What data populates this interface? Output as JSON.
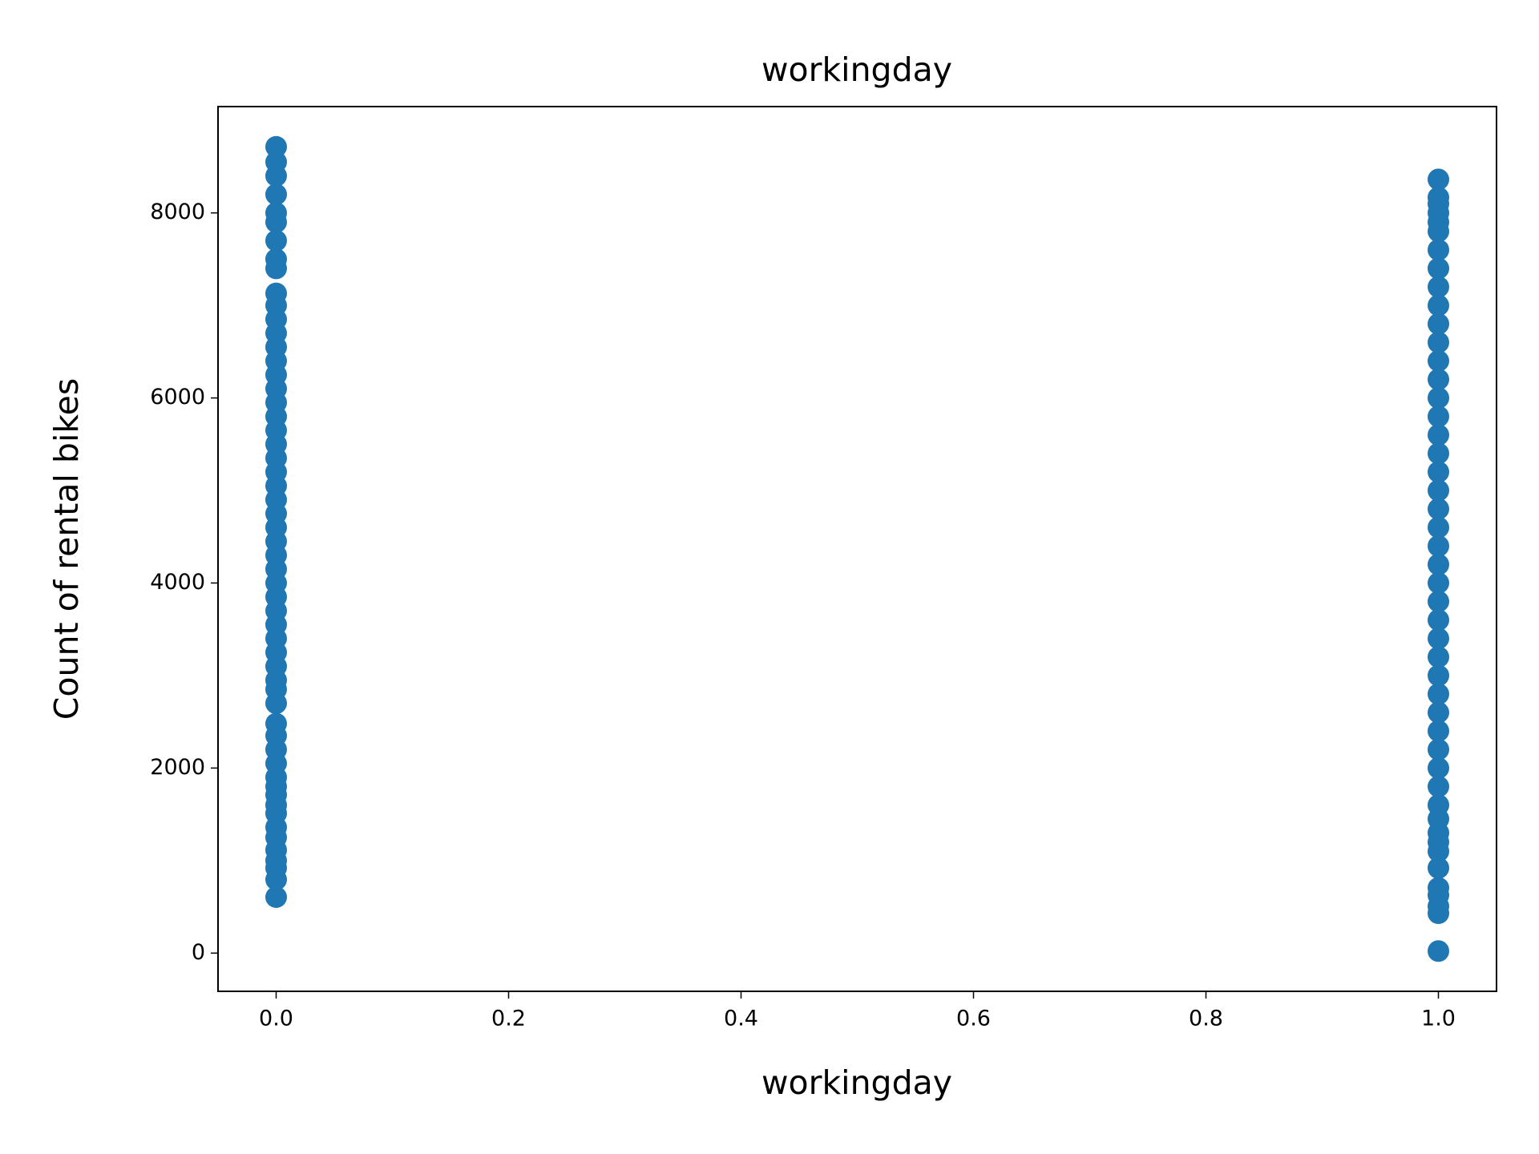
{
  "chart_data": {
    "type": "scatter",
    "title": "workingday",
    "x_label": "workingday",
    "y_label": "Count of rental bikes",
    "color": "#1f77b4",
    "x": [
      0,
      0,
      0,
      0,
      0,
      0,
      0,
      0,
      0,
      0,
      0,
      0,
      0,
      0,
      0,
      0,
      0,
      0,
      0,
      0,
      0,
      0,
      0,
      0,
      0,
      0,
      0,
      0,
      0,
      0,
      0,
      0,
      0,
      0,
      0,
      0,
      0,
      0,
      0,
      0,
      0,
      0,
      0,
      0,
      0,
      0,
      0,
      0,
      0,
      0,
      0,
      0,
      0,
      0,
      0,
      0,
      1,
      1,
      1,
      1,
      1,
      1,
      1,
      1,
      1,
      1,
      1,
      1,
      1,
      1,
      1,
      1,
      1,
      1,
      1,
      1,
      1,
      1,
      1,
      1,
      1,
      1,
      1,
      1,
      1,
      1,
      1,
      1,
      1,
      1,
      1,
      1,
      1,
      1,
      1,
      1,
      1,
      1,
      1,
      1,
      1,
      1,
      1
    ],
    "values": [
      605,
      795,
      920,
      1000,
      1115,
      1250,
      1360,
      1510,
      1600,
      1710,
      1800,
      1900,
      2050,
      2200,
      2350,
      2480,
      2700,
      2850,
      2950,
      3100,
      3250,
      3400,
      3550,
      3700,
      3850,
      4000,
      4150,
      4300,
      4450,
      4600,
      4750,
      4900,
      5050,
      5200,
      5350,
      5500,
      5650,
      5800,
      5950,
      6100,
      6250,
      6400,
      6550,
      6700,
      6850,
      7000,
      7130,
      7400,
      7500,
      7700,
      7900,
      8000,
      8200,
      8400,
      8550,
      8714,
      22,
      431,
      506,
      627,
      705,
      920,
      1100,
      1200,
      1300,
      1450,
      1600,
      1800,
      2000,
      2200,
      2400,
      2600,
      2800,
      3000,
      3200,
      3400,
      3600,
      3800,
      4000,
      4200,
      4400,
      4600,
      4800,
      5000,
      5200,
      5400,
      5600,
      5800,
      6000,
      6200,
      6400,
      6600,
      6800,
      7000,
      7200,
      7400,
      7600,
      7800,
      7900,
      8000,
      8100,
      8167,
      8362
    ],
    "xlim": [
      -0.05,
      1.05
    ],
    "xticks": [
      {
        "value": 0,
        "label": "0.0"
      },
      0.2,
      0.4,
      0.6,
      0.8,
      {
        "value": 1,
        "label": "1.0"
      }
    ],
    "ylim": [
      -413,
      9149
    ],
    "yticks": [
      0,
      2000,
      4000,
      6000,
      8000
    ]
  }
}
